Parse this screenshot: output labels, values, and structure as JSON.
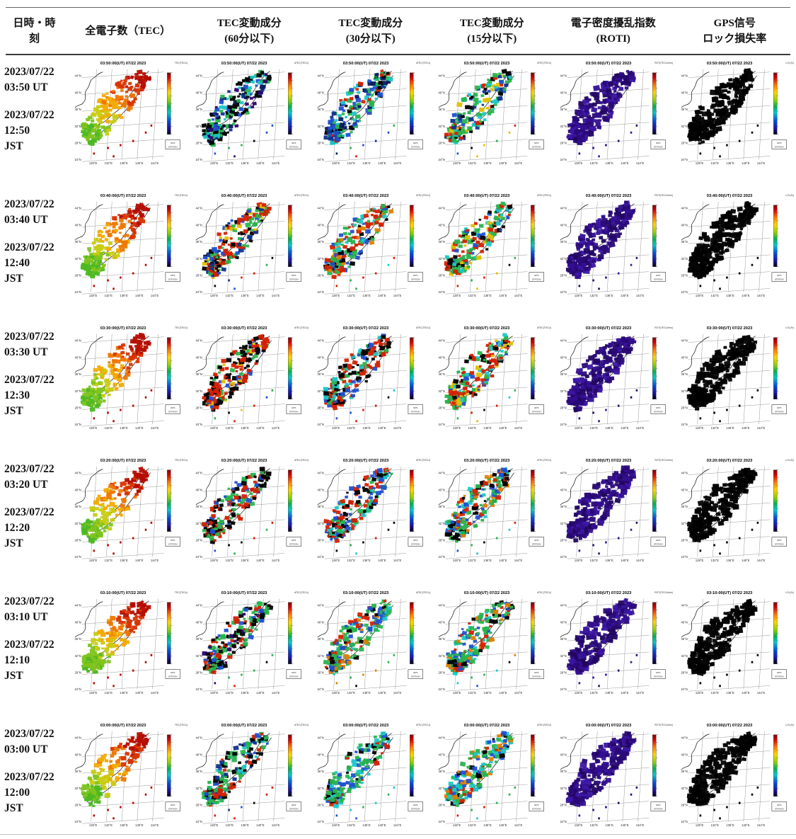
{
  "header": {
    "columns": [
      {
        "id": "datetime",
        "lines": [
          "日時・時",
          "刻"
        ]
      },
      {
        "id": "tec",
        "lines": [
          "全電子数（TEC）"
        ]
      },
      {
        "id": "tec60",
        "lines": [
          "TEC変動成分",
          "(60分以下)"
        ]
      },
      {
        "id": "tec30",
        "lines": [
          "TEC変動成分",
          "(30分以下)"
        ]
      },
      {
        "id": "tec15",
        "lines": [
          "TEC変動成分",
          "(15分以下)"
        ]
      },
      {
        "id": "roti",
        "lines": [
          "電子密度擾乱指数",
          "(ROTI)"
        ]
      },
      {
        "id": "gps",
        "lines": [
          "GPS信号",
          "ロック損失率"
        ]
      }
    ]
  },
  "map": {
    "lat_labels": [
      "44°N",
      "40°N",
      "36°N",
      "32°N",
      "28°N",
      "24°N"
    ],
    "lon_labels": [
      "128°E",
      "132°E",
      "136°E",
      "140°E",
      "144°E"
    ],
    "station_box": [
      "GPS",
      "STATION"
    ],
    "cb_labels": [
      "TEC(TECU)",
      "dTEC(TECU)",
      "dTEC(TECU)",
      "dTEC(TECU)",
      "ROTI(TECU/min)",
      "LOL(%)"
    ],
    "rainbow": [
      [
        "0",
        "#7a0000"
      ],
      [
        "0.08",
        "#d40000"
      ],
      [
        "0.2",
        "#ff7700"
      ],
      [
        "0.32",
        "#ffd400"
      ],
      [
        "0.45",
        "#8cd000"
      ],
      [
        "0.55",
        "#00b050"
      ],
      [
        "0.65",
        "#00c8c8"
      ],
      [
        "0.78",
        "#0050dc"
      ],
      [
        "0.9",
        "#1e14a0"
      ],
      [
        "1",
        "#000018"
      ]
    ]
  },
  "rows": [
    {
      "date": "2023/07/22",
      "ut": "03:50 UT",
      "jst_date": "2023/07/22",
      "jst_time": "12:50",
      "jst_label": "JST",
      "map_title": "03:50:00(UT) 07/22 2023",
      "cells": [
        "tec",
        "f60a",
        "f30a",
        "f15a",
        "roti",
        "gps"
      ]
    },
    {
      "date": "2023/07/22",
      "ut": "03:40 UT",
      "jst_date": "2023/07/22",
      "jst_time": "12:40",
      "jst_label": "JST",
      "map_title": "03:40:00(UT) 07/22 2023",
      "cells": [
        "tec",
        "f60b",
        "f30b",
        "f15b",
        "roti",
        "gps"
      ]
    },
    {
      "date": "2023/07/22",
      "ut": "03:30 UT",
      "jst_date": "2023/07/22",
      "jst_time": "12:30",
      "jst_label": "JST",
      "map_title": "03:30:00(UT) 07/22 2023",
      "cells": [
        "tec",
        "f60c",
        "f30c",
        "f15c",
        "roti",
        "gps"
      ]
    },
    {
      "date": "2023/07/22",
      "ut": "03:20 UT",
      "jst_date": "2023/07/22",
      "jst_time": "12:20",
      "jst_label": "JST",
      "map_title": "03:20:00(UT) 07/22 2023",
      "cells": [
        "tec",
        "f60d",
        "f30d",
        "f15d",
        "roti",
        "gps"
      ]
    },
    {
      "date": "2023/07/22",
      "ut": "03:10 UT",
      "jst_date": "2023/07/22",
      "jst_time": "12:10",
      "jst_label": "JST",
      "map_title": "03:10:00(UT) 07/22 2023",
      "cells": [
        "tec",
        "f60e",
        "f30e",
        "f15e",
        "roti",
        "gps"
      ]
    },
    {
      "date": "2023/07/22",
      "ut": "03:00 UT",
      "jst_date": "2023/07/22",
      "jst_time": "12:00",
      "jst_label": "JST",
      "map_title": "03:00:00(UT) 07/22 2023",
      "cells": [
        "tec",
        "f60f",
        "f30f",
        "f15f",
        "roti",
        "gps"
      ]
    }
  ],
  "palettes": {
    "tec": {
      "mode": "gradient",
      "colors": [
        "#b50d00",
        "#d83400",
        "#ee7700",
        "#f2aa00",
        "#c8cc11",
        "#7fc41e",
        "#4db822"
      ]
    },
    "roti": {
      "mode": "random",
      "dense": true,
      "colors": [
        "#2a0a78",
        "#340f92",
        "#220660",
        "#3c17a4",
        "#2a0a78"
      ]
    },
    "gps": {
      "mode": "random",
      "dense": true,
      "colors": [
        "#000000",
        "#000000",
        "#000000",
        "#060606"
      ]
    },
    "f60a": {
      "mode": "random",
      "colors": [
        "#000000",
        "#000000",
        "#000000",
        "#0a1a5e",
        "#10328c",
        "#2050d2",
        "#28b44e",
        "#28b44e",
        "#30006e",
        "#1ac8c8"
      ]
    },
    "f30a": {
      "mode": "random",
      "colors": [
        "#2050d2",
        "#2050d2",
        "#28b44e",
        "#28b44e",
        "#000000",
        "#0a1a5e",
        "#1ac8c8",
        "#d42000",
        "#10328c"
      ]
    },
    "f15a": {
      "mode": "random",
      "colors": [
        "#28b44e",
        "#28b44e",
        "#28b44e",
        "#1ac8c8",
        "#2050d2",
        "#d42000",
        "#000000",
        "#e0c000",
        "#10328c"
      ]
    },
    "f60b": {
      "mode": "random",
      "colors": [
        "#d42000",
        "#d42000",
        "#d42000",
        "#000000",
        "#000000",
        "#28b44e",
        "#28b44e",
        "#2050d2",
        "#10328c",
        "#e0c000"
      ]
    },
    "f30b": {
      "mode": "random",
      "colors": [
        "#d42000",
        "#d42000",
        "#d42000",
        "#28b44e",
        "#28b44e",
        "#2050d2",
        "#000000",
        "#1ac8c8",
        "#e08000"
      ]
    },
    "f15b": {
      "mode": "random",
      "colors": [
        "#d42000",
        "#d42000",
        "#28b44e",
        "#28b44e",
        "#28b44e",
        "#1ac8c8",
        "#2050d2",
        "#e0c000",
        "#000000"
      ]
    },
    "f60c": {
      "mode": "random",
      "colors": [
        "#d42000",
        "#d42000",
        "#d42000",
        "#d42000",
        "#000000",
        "#000000",
        "#000000",
        "#28b44e",
        "#2050d2",
        "#e0c000"
      ]
    },
    "f30c": {
      "mode": "random",
      "colors": [
        "#d42000",
        "#d42000",
        "#d42000",
        "#d42000",
        "#2050d2",
        "#28b44e",
        "#000000",
        "#000000",
        "#1ac8c8"
      ]
    },
    "f15c": {
      "mode": "random",
      "colors": [
        "#d42000",
        "#d42000",
        "#d42000",
        "#28b44e",
        "#28b44e",
        "#1ac8c8",
        "#2050d2",
        "#000000",
        "#e0c000"
      ]
    },
    "f60d": {
      "mode": "random",
      "colors": [
        "#d42000",
        "#d42000",
        "#d42000",
        "#000000",
        "#000000",
        "#000000",
        "#28b44e",
        "#28b44e",
        "#2050d2"
      ]
    },
    "f30d": {
      "mode": "random",
      "colors": [
        "#28b44e",
        "#28b44e",
        "#d42000",
        "#d42000",
        "#2050d2",
        "#2050d2",
        "#000000",
        "#000000",
        "#1ac8c8"
      ]
    },
    "f15d": {
      "mode": "random",
      "colors": [
        "#28b44e",
        "#28b44e",
        "#2050d2",
        "#2050d2",
        "#d42000",
        "#000000",
        "#000000",
        "#e08000",
        "#1ac8c8"
      ]
    },
    "f60e": {
      "mode": "random",
      "colors": [
        "#28b44e",
        "#28b44e",
        "#28b44e",
        "#d42000",
        "#d42000",
        "#000000",
        "#000000",
        "#2050d2",
        "#30006e"
      ]
    },
    "f30e": {
      "mode": "random",
      "colors": [
        "#28b44e",
        "#28b44e",
        "#28b44e",
        "#d42000",
        "#2050d2",
        "#2050d2",
        "#000000",
        "#e08000",
        "#1ac8c8"
      ]
    },
    "f15e": {
      "mode": "random",
      "colors": [
        "#28b44e",
        "#28b44e",
        "#e08000",
        "#d42000",
        "#2050d2",
        "#2050d2",
        "#1ac8c8",
        "#28b44e",
        "#000000"
      ]
    },
    "f60f": {
      "mode": "random",
      "colors": [
        "#28b44e",
        "#28b44e",
        "#2050d2",
        "#000000",
        "#000000",
        "#1ac8c8",
        "#d42000",
        "#10328c",
        "#28b44e"
      ]
    },
    "f30f": {
      "mode": "random",
      "colors": [
        "#28b44e",
        "#28b44e",
        "#2050d2",
        "#2050d2",
        "#1ac8c8",
        "#1ac8c8",
        "#28b44e",
        "#000000",
        "#d42000"
      ]
    },
    "f15f": {
      "mode": "random",
      "colors": [
        "#28b44e",
        "#28b44e",
        "#2050d2",
        "#1ac8c8",
        "#1ac8c8",
        "#000000",
        "#e08000",
        "#d42000",
        "#28b44e"
      ]
    }
  }
}
